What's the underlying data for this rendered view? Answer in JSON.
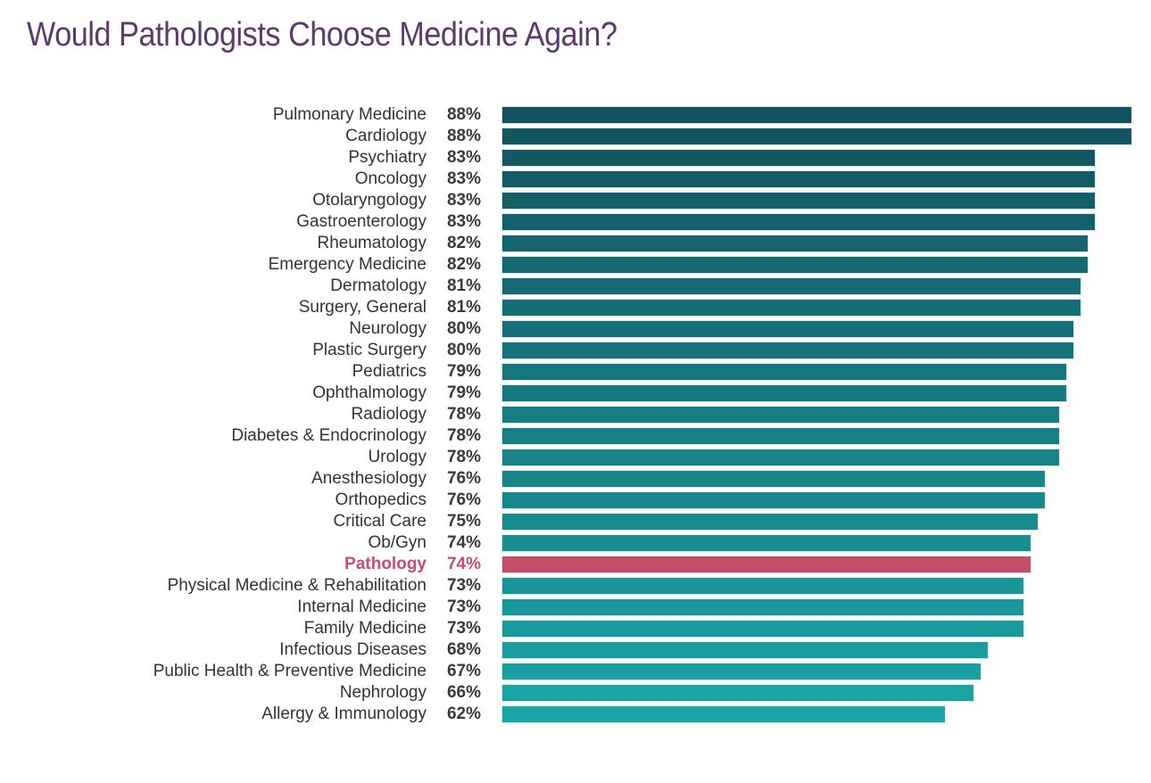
{
  "title": "Would Pathologists Choose Medicine Again?",
  "colors": {
    "title": "#5D3A6E",
    "label_text": "#333333",
    "value_text": "#3A3A3A",
    "bar_gradient_top": "#13525E",
    "bar_gradient_bottom": "#1AA6A6",
    "bar_border": "#D9EEF1",
    "highlight": "#C54D69",
    "background": "#FFFFFF"
  },
  "chart_data": {
    "type": "bar",
    "orientation": "horizontal",
    "title": "Would Pathologists Choose Medicine Again?",
    "value_format": "percent",
    "xlim": [
      0,
      100
    ],
    "grid": false,
    "legend": false,
    "highlight_category": "Pathology",
    "categories": [
      "Pulmonary Medicine",
      "Cardiology",
      "Psychiatry",
      "Oncology",
      "Otolaryngology",
      "Gastroenterology",
      "Rheumatology",
      "Emergency Medicine",
      "Dermatology",
      "Surgery, General",
      "Neurology",
      "Plastic Surgery",
      "Pediatrics",
      "Ophthalmology",
      "Radiology",
      "Diabetes & Endocrinology",
      "Urology",
      "Anesthesiology",
      "Orthopedics",
      "Critical Care",
      "Ob/Gyn",
      "Pathology",
      "Physical Medicine & Rehabilitation",
      "Internal Medicine",
      "Family Medicine",
      "Infectious Diseases",
      "Public Health & Preventive Medicine",
      "Nephrology",
      "Allergy & Immunology"
    ],
    "values": [
      88,
      88,
      83,
      83,
      83,
      83,
      82,
      82,
      81,
      81,
      80,
      80,
      79,
      79,
      78,
      78,
      78,
      76,
      76,
      75,
      74,
      74,
      73,
      73,
      73,
      68,
      67,
      66,
      62
    ],
    "value_labels": [
      "88%",
      "88%",
      "83%",
      "83%",
      "83%",
      "83%",
      "82%",
      "82%",
      "81%",
      "81%",
      "80%",
      "80%",
      "79%",
      "79%",
      "78%",
      "78%",
      "78%",
      "76%",
      "76%",
      "75%",
      "74%",
      "74%",
      "73%",
      "73%",
      "73%",
      "68%",
      "67%",
      "66%",
      "62%"
    ]
  }
}
